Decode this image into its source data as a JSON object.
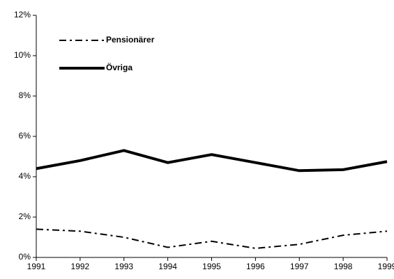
{
  "chart_data": {
    "type": "line",
    "x": [
      1991,
      1992,
      1993,
      1994,
      1995,
      1996,
      1997,
      1998,
      1999
    ],
    "xlim": [
      1991,
      1999
    ],
    "xticks": [
      1991,
      1992,
      1993,
      1994,
      1995,
      1996,
      1997,
      1998,
      1999
    ],
    "ylim": [
      0,
      12
    ],
    "yticks": [
      {
        "value": 0,
        "label": "0%"
      },
      {
        "value": 2,
        "label": "2%"
      },
      {
        "value": 4,
        "label": "4%"
      },
      {
        "value": 6,
        "label": "6%"
      },
      {
        "value": 8,
        "label": "8%"
      },
      {
        "value": 10,
        "label": "10%"
      },
      {
        "value": 12,
        "label": "12%"
      }
    ],
    "grid": false,
    "legend": "upper left",
    "series": [
      {
        "name": "Pensionärer",
        "color": "#000000",
        "style": "dash-dot",
        "values": [
          1.4,
          1.3,
          1.0,
          0.5,
          0.8,
          0.45,
          0.65,
          1.1,
          1.3
        ]
      },
      {
        "name": "Övriga",
        "color": "#000000",
        "style": "solid",
        "values": [
          4.4,
          4.8,
          5.3,
          4.7,
          5.1,
          4.7,
          4.3,
          4.35,
          4.75
        ]
      }
    ]
  }
}
